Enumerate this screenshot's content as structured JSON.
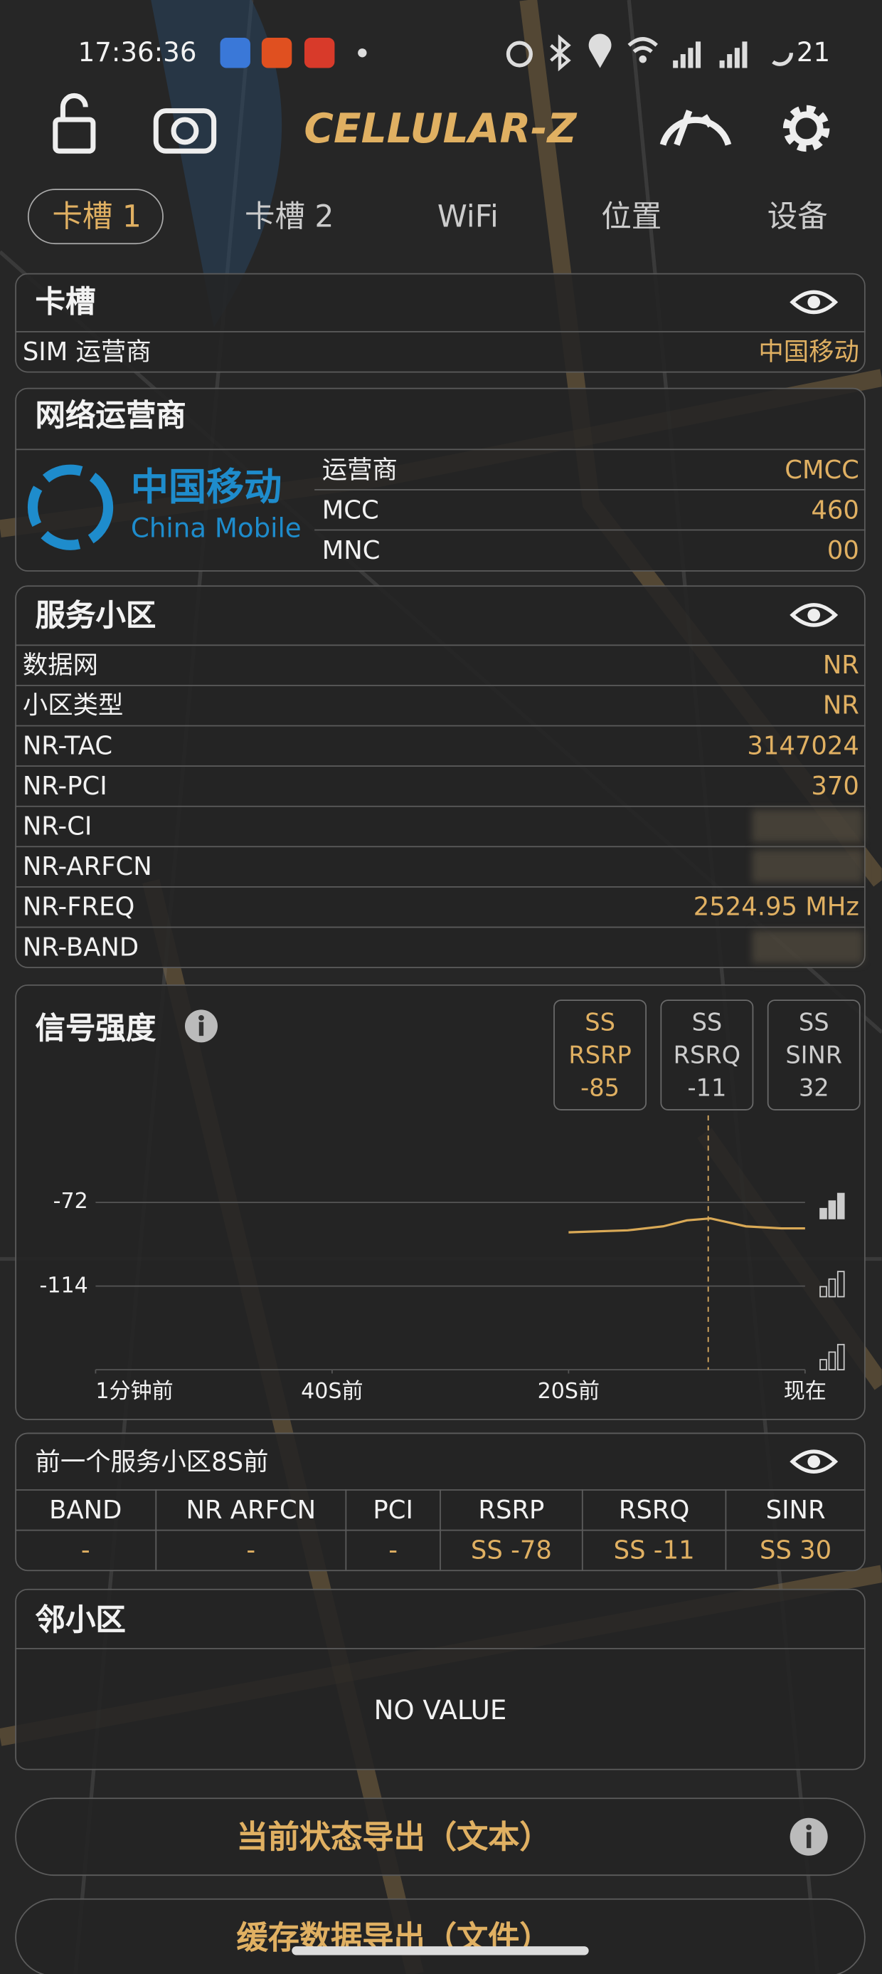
{
  "status_bar": {
    "time": "17:36:36",
    "battery": "21"
  },
  "header": {
    "title": "CELLULAR-Z"
  },
  "tabs": [
    "卡槽 1",
    "卡槽 2",
    "WiFi",
    "位置",
    "设备"
  ],
  "sim": {
    "title": "卡槽",
    "rows": [
      [
        "SIM 运营商",
        "中国移动"
      ]
    ]
  },
  "network_operator": {
    "title": "网络运营商",
    "logo_cn": "中国移动",
    "logo_en": "China Mobile",
    "rows": [
      [
        "运营商",
        "CMCC"
      ],
      [
        "MCC",
        "460"
      ],
      [
        "MNC",
        "00"
      ]
    ]
  },
  "serving_cell": {
    "title": "服务小区",
    "rows": [
      [
        "数据网",
        "NR"
      ],
      [
        "小区类型",
        "NR"
      ],
      [
        "NR-TAC",
        "3147024"
      ],
      [
        "NR-PCI",
        "370"
      ],
      [
        "NR-CI"
      ],
      [
        "NR-ARFCN"
      ],
      [
        "NR-FREQ",
        "2524.95 MHz"
      ],
      [
        "NR-BAND"
      ]
    ]
  },
  "signal": {
    "title": "信号强度",
    "metrics": [
      [
        "SS",
        "RSRP",
        "-85"
      ],
      [
        "SS",
        "RSRQ",
        "-11"
      ],
      [
        "SS",
        "SINR",
        "32"
      ]
    ],
    "chart": {
      "type": "line",
      "x": [
        -20,
        -15,
        -12,
        -10,
        -8,
        -5,
        -2,
        0
      ],
      "values": [
        -87,
        -86,
        -84,
        -81,
        -80,
        -84,
        -85,
        -85
      ],
      "color": "#d9a956",
      "xlim": [
        -60,
        0
      ],
      "xticks": [
        {
          "value": -60,
          "label": "1分钟前"
        },
        {
          "value": -40,
          "label": "40S前"
        },
        {
          "value": -20,
          "label": "20S前"
        },
        {
          "value": 0,
          "label": "现在"
        }
      ],
      "ylim": [
        -156,
        -58
      ],
      "yticks": [
        -72,
        -114
      ],
      "grid": true
    }
  },
  "previous_cell": {
    "title": "前一个服务小区8S前",
    "headers": [
      "BAND",
      "NR ARFCN",
      "PCI",
      "RSRP",
      "RSRQ",
      "SINR"
    ],
    "values": [
      "-",
      "-",
      "-",
      "SS -78",
      "SS -11",
      "SS 30"
    ]
  },
  "neighbor": {
    "title": "邻小区",
    "empty": "NO VALUE"
  },
  "buttons": [
    "当前状态导出（文本）",
    "缓存数据导出（文件）"
  ]
}
